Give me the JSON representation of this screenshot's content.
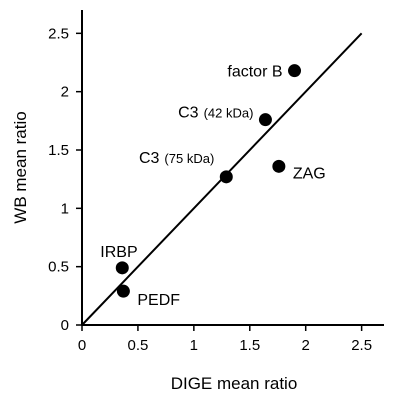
{
  "chart_data": {
    "type": "scatter",
    "title": "",
    "xlabel": "DIGE mean ratio",
    "ylabel": "WB mean ratio",
    "xlim": [
      0,
      2.7
    ],
    "ylim": [
      0,
      2.7
    ],
    "xticks": [
      "0",
      "0.5",
      "1",
      "1.5",
      "2",
      "2.5"
    ],
    "yticks": [
      "0",
      "0.5",
      "1",
      "1.5",
      "2",
      "2.5"
    ],
    "grid": false,
    "reference_line": {
      "x": [
        0,
        2.5
      ],
      "y": [
        0,
        2.5
      ]
    },
    "points": [
      {
        "label": "factor B",
        "sublabel": "",
        "x": 1.9,
        "y": 2.18
      },
      {
        "label": "C3",
        "sublabel": "(42 kDa)",
        "x": 1.64,
        "y": 1.76
      },
      {
        "label": "C3",
        "sublabel": "(75 kDa)",
        "x": 1.29,
        "y": 1.27
      },
      {
        "label": "ZAG",
        "sublabel": "",
        "x": 1.76,
        "y": 1.36
      },
      {
        "label": "IRBP",
        "sublabel": "",
        "x": 0.36,
        "y": 0.49
      },
      {
        "label": "PEDF",
        "sublabel": "",
        "x": 0.37,
        "y": 0.29
      }
    ]
  }
}
